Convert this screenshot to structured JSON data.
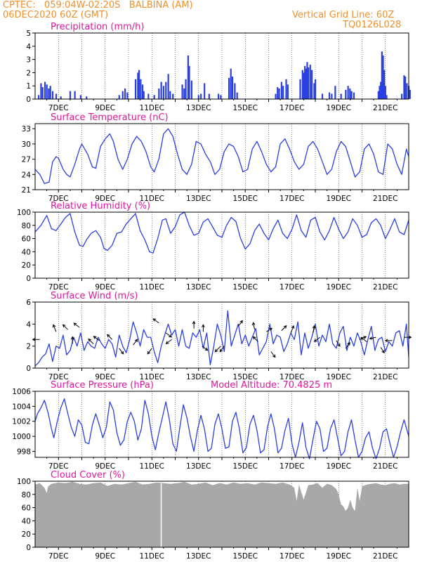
{
  "header": {
    "line1_left": "CPTEC:   059:04W-02:20S   BALBINA (AM)",
    "line2_left": "06DEC2020 60Z (GMT)",
    "line2_right": "Vertical Grid Line: 60Z",
    "line3_right": "TQ0126L028"
  },
  "colors": {
    "header": "#f0902a",
    "title": "#e0189a",
    "series": "#2a40e0",
    "cloud": "#a8a8a8"
  },
  "date_labels": [
    "7DEC",
    "9DEC",
    "11DEC",
    "13DEC",
    "15DEC",
    "17DEC",
    "19DEC",
    "21DEC"
  ],
  "chart_data": [
    {
      "type": "bar",
      "title": "Precipitation (mm/h)",
      "ylim": [
        0,
        5
      ],
      "yticks": [
        "0",
        "1",
        "2",
        "3",
        "4",
        "5"
      ],
      "bars": [
        [
          6.15,
          0.3
        ],
        [
          6.25,
          1.2
        ],
        [
          6.32,
          0.9
        ],
        [
          6.42,
          1.3
        ],
        [
          6.5,
          1.1
        ],
        [
          6.58,
          0.8
        ],
        [
          6.65,
          1.0
        ],
        [
          6.75,
          0.6
        ],
        [
          6.9,
          0.4
        ],
        [
          7.1,
          0.2
        ],
        [
          7.5,
          0.6
        ],
        [
          7.7,
          0.6
        ],
        [
          7.95,
          0.3
        ],
        [
          8.2,
          0.2
        ],
        [
          9.6,
          0.3
        ],
        [
          9.75,
          0.6
        ],
        [
          9.85,
          0.8
        ],
        [
          9.95,
          0.5
        ],
        [
          10.3,
          1.5
        ],
        [
          10.4,
          2.0
        ],
        [
          10.45,
          2.2
        ],
        [
          10.52,
          1.5
        ],
        [
          10.6,
          1.1
        ],
        [
          10.65,
          0.6
        ],
        [
          10.85,
          0.4
        ],
        [
          11.1,
          0.3
        ],
        [
          11.3,
          0.8
        ],
        [
          11.4,
          1.3
        ],
        [
          11.5,
          1.0
        ],
        [
          11.6,
          1.3
        ],
        [
          11.7,
          1.9
        ],
        [
          11.78,
          0.6
        ],
        [
          11.9,
          0.4
        ],
        [
          12.3,
          1.1
        ],
        [
          12.38,
          0.8
        ],
        [
          12.45,
          1.5
        ],
        [
          12.55,
          3.3
        ],
        [
          12.6,
          2.5
        ],
        [
          12.7,
          1.4
        ],
        [
          13.0,
          0.3
        ],
        [
          13.1,
          0.4
        ],
        [
          13.25,
          1.2
        ],
        [
          13.45,
          0.4
        ],
        [
          13.85,
          0.4
        ],
        [
          13.95,
          0.3
        ],
        [
          14.3,
          1.6
        ],
        [
          14.38,
          2.3
        ],
        [
          14.45,
          1.7
        ],
        [
          14.55,
          1.2
        ],
        [
          14.65,
          0.5
        ],
        [
          16.3,
          0.4
        ],
        [
          16.38,
          0.9
        ],
        [
          16.45,
          0.8
        ],
        [
          16.55,
          1.3
        ],
        [
          16.62,
          1.0
        ],
        [
          16.75,
          1.5
        ],
        [
          16.82,
          1.1
        ],
        [
          17.35,
          1.5
        ],
        [
          17.45,
          2.2
        ],
        [
          17.5,
          2.0
        ],
        [
          17.55,
          2.5
        ],
        [
          17.6,
          2.3
        ],
        [
          17.65,
          2.8
        ],
        [
          17.7,
          2.4
        ],
        [
          17.78,
          2.6
        ],
        [
          17.85,
          2.2
        ],
        [
          17.95,
          1.2
        ],
        [
          18.0,
          1.5
        ],
        [
          18.3,
          0.4
        ],
        [
          18.6,
          0.5
        ],
        [
          18.7,
          0.4
        ],
        [
          18.85,
          1.0
        ],
        [
          19.1,
          0.4
        ],
        [
          19.3,
          0.7
        ],
        [
          19.4,
          1.0
        ],
        [
          19.48,
          0.8
        ],
        [
          19.55,
          0.6
        ],
        [
          19.65,
          0.5
        ],
        [
          20.7,
          0.6
        ],
        [
          20.75,
          1.0
        ],
        [
          20.8,
          1.3
        ],
        [
          20.85,
          3.6
        ],
        [
          20.9,
          3.3
        ],
        [
          20.95,
          2.2
        ],
        [
          21.0,
          1.0
        ],
        [
          21.05,
          0.3
        ],
        [
          21.7,
          0.4
        ],
        [
          21.8,
          1.8
        ],
        [
          21.85,
          1.7
        ],
        [
          21.92,
          1.2
        ],
        [
          22.0,
          1.0
        ],
        [
          22.05,
          0.7
        ]
      ]
    },
    {
      "type": "line",
      "title": "Surface Temperature (nC)",
      "ylim": [
        21,
        34
      ],
      "yticks": [
        "21",
        "24",
        "27",
        "30",
        "33"
      ],
      "x": [
        6.0,
        6.2,
        6.4,
        6.6,
        6.75,
        6.9,
        7.0,
        7.2,
        7.35,
        7.5,
        7.7,
        7.9,
        8.0,
        8.25,
        8.45,
        8.6,
        8.8,
        9.0,
        9.2,
        9.35,
        9.55,
        9.75,
        9.95,
        10.15,
        10.35,
        10.55,
        10.75,
        10.95,
        11.1,
        11.3,
        11.5,
        11.7,
        11.9,
        12.1,
        12.3,
        12.5,
        12.7,
        12.9,
        13.1,
        13.3,
        13.5,
        13.7,
        13.9,
        14.1,
        14.3,
        14.5,
        14.7,
        14.9,
        15.1,
        15.3,
        15.5,
        15.7,
        15.9,
        16.1,
        16.3,
        16.5,
        16.7,
        16.9,
        17.1,
        17.3,
        17.5,
        17.7,
        17.9,
        18.1,
        18.3,
        18.5,
        18.7,
        18.9,
        19.1,
        19.3,
        19.5,
        19.7,
        19.9,
        20.1,
        20.3,
        20.5,
        20.7,
        20.9,
        21.1,
        21.3,
        21.5,
        21.7,
        21.9,
        22.0
      ],
      "y": [
        25.0,
        24.0,
        22.2,
        22.5,
        26.5,
        27.5,
        27.2,
        25.0,
        24.0,
        23.5,
        26.0,
        29.0,
        30.0,
        28.0,
        25.5,
        25.2,
        29.5,
        31.0,
        32.0,
        30.5,
        27.0,
        25.0,
        27.0,
        30.0,
        31.5,
        30.5,
        28.5,
        25.5,
        24.5,
        27.0,
        32.0,
        33.0,
        31.5,
        28.0,
        25.0,
        24.0,
        26.0,
        30.5,
        30.0,
        28.0,
        26.5,
        24.0,
        25.0,
        28.5,
        30.0,
        29.5,
        27.5,
        24.5,
        25.0,
        29.0,
        30.5,
        28.5,
        26.0,
        24.5,
        25.5,
        30.0,
        31.0,
        29.0,
        26.5,
        25.0,
        26.0,
        29.5,
        30.5,
        29.0,
        26.5,
        24.0,
        25.0,
        28.5,
        30.5,
        29.5,
        26.5,
        23.5,
        24.5,
        29.0,
        30.0,
        28.0,
        24.5,
        24.0,
        30.0,
        29.0,
        26.0,
        24.0,
        29.0,
        27.5
      ]
    },
    {
      "type": "line",
      "title": "Relative Humidity (%)",
      "ylim": [
        0,
        100
      ],
      "yticks": [
        "0",
        "20",
        "40",
        "60",
        "80",
        "100"
      ],
      "x": [
        6.0,
        6.25,
        6.5,
        6.7,
        6.9,
        7.1,
        7.3,
        7.5,
        7.7,
        7.9,
        8.05,
        8.2,
        8.4,
        8.6,
        8.8,
        8.95,
        9.1,
        9.3,
        9.5,
        9.7,
        9.9,
        10.1,
        10.3,
        10.5,
        10.7,
        10.9,
        11.05,
        11.25,
        11.45,
        11.6,
        11.8,
        12.0,
        12.2,
        12.4,
        12.6,
        12.8,
        13.0,
        13.2,
        13.4,
        13.6,
        13.8,
        14.0,
        14.2,
        14.4,
        14.6,
        14.8,
        15.0,
        15.2,
        15.4,
        15.6,
        15.8,
        16.0,
        16.2,
        16.4,
        16.6,
        16.8,
        17.0,
        17.2,
        17.4,
        17.6,
        17.8,
        18.0,
        18.2,
        18.4,
        18.6,
        18.8,
        19.0,
        19.2,
        19.4,
        19.6,
        19.8,
        20.0,
        20.2,
        20.4,
        20.6,
        20.8,
        21.0,
        21.2,
        21.4,
        21.6,
        21.8,
        22.0
      ],
      "y": [
        70,
        80,
        95,
        75,
        72,
        82,
        92,
        98,
        70,
        50,
        48,
        58,
        68,
        72,
        62,
        45,
        42,
        50,
        68,
        70,
        82,
        90,
        98,
        72,
        58,
        40,
        38,
        60,
        88,
        90,
        68,
        78,
        96,
        100,
        80,
        65,
        68,
        85,
        90,
        78,
        65,
        62,
        80,
        92,
        86,
        60,
        44,
        52,
        72,
        82,
        68,
        58,
        75,
        88,
        68,
        60,
        74,
        96,
        72,
        62,
        88,
        92,
        70,
        58,
        72,
        92,
        74,
        60,
        70,
        90,
        80,
        62,
        66,
        84,
        90,
        80,
        60,
        74,
        90,
        70,
        66,
        88
      ]
    },
    {
      "type": "line",
      "title": "Surface Wind (m/s)",
      "ylim": [
        0,
        6
      ],
      "yticks": [
        "0",
        "2",
        "4",
        "6"
      ],
      "x": [
        6.0,
        6.15,
        6.3,
        6.45,
        6.6,
        6.75,
        6.9,
        7.05,
        7.2,
        7.35,
        7.5,
        7.65,
        7.8,
        7.95,
        8.1,
        8.25,
        8.4,
        8.55,
        8.7,
        8.85,
        9.0,
        9.15,
        9.3,
        9.45,
        9.6,
        9.75,
        9.9,
        10.05,
        10.2,
        10.35,
        10.5,
        10.65,
        10.8,
        10.95,
        11.1,
        11.25,
        11.4,
        11.55,
        11.7,
        11.85,
        12.0,
        12.15,
        12.3,
        12.45,
        12.6,
        12.75,
        12.9,
        13.05,
        13.2,
        13.35,
        13.5,
        13.65,
        13.8,
        13.95,
        14.1,
        14.25,
        14.4,
        14.55,
        14.7,
        14.85,
        15.0,
        15.15,
        15.3,
        15.45,
        15.6,
        15.75,
        15.9,
        16.05,
        16.2,
        16.35,
        16.5,
        16.65,
        16.8,
        16.95,
        17.1,
        17.25,
        17.4,
        17.55,
        17.7,
        17.85,
        18.0,
        18.15,
        18.3,
        18.45,
        18.6,
        18.75,
        18.9,
        19.05,
        19.2,
        19.35,
        19.5,
        19.65,
        19.8,
        19.95,
        20.1,
        20.25,
        20.4,
        20.55,
        20.7,
        20.85,
        21.0,
        21.15,
        21.3,
        21.45,
        21.6,
        21.75,
        21.9,
        22.0
      ],
      "y": [
        0.2,
        0.5,
        1.0,
        1.3,
        2.2,
        0.6,
        2.0,
        1.8,
        3.0,
        1.2,
        1.6,
        2.8,
        2.0,
        3.2,
        1.6,
        2.4,
        2.0,
        1.8,
        2.8,
        2.2,
        1.8,
        2.6,
        2.2,
        1.0,
        3.0,
        2.0,
        1.4,
        2.6,
        4.2,
        3.2,
        2.0,
        3.5,
        2.8,
        2.8,
        1.5,
        0.5,
        2.0,
        3.0,
        4.0,
        3.0,
        3.5,
        2.0,
        3.5,
        2.0,
        1.8,
        3.2,
        2.8,
        3.5,
        1.8,
        3.2,
        0.3,
        2.0,
        4.0,
        3.0,
        1.5,
        5.2,
        2.0,
        3.0,
        4.0,
        2.2,
        3.0,
        2.0,
        2.8,
        3.6,
        1.2,
        1.8,
        2.4,
        4.0,
        2.2,
        3.0,
        2.8,
        1.5,
        2.2,
        3.2,
        2.6,
        4.2,
        1.2,
        3.2,
        1.8,
        2.8,
        4.0,
        2.0,
        3.0,
        2.4,
        4.0,
        2.2,
        1.8,
        3.2,
        3.8,
        1.6,
        2.8,
        2.0,
        3.2,
        2.4,
        1.2,
        2.6,
        3.8,
        1.6,
        2.6,
        2.8,
        1.5,
        2.4,
        2.0,
        3.2,
        3.4,
        2.0,
        4.0,
        1.0
      ]
    },
    {
      "type": "line",
      "title": "Surface Pressure (hPa)",
      "annotation": "Model Altitude: 70.4825 m",
      "ylim": [
        997.2,
        1006
      ],
      "yticks": [
        "998",
        "1000",
        "1002",
        "1004",
        "1006"
      ],
      "x": [
        6.0,
        6.1,
        6.25,
        6.4,
        6.55,
        6.7,
        6.8,
        6.95,
        7.1,
        7.25,
        7.4,
        7.55,
        7.7,
        7.85,
        8.0,
        8.15,
        8.3,
        8.45,
        8.6,
        8.75,
        8.9,
        9.05,
        9.2,
        9.35,
        9.5,
        9.65,
        9.8,
        9.95,
        10.1,
        10.25,
        10.4,
        10.55,
        10.7,
        10.85,
        11.0,
        11.15,
        11.3,
        11.45,
        11.6,
        11.75,
        11.9,
        12.05,
        12.2,
        12.35,
        12.5,
        12.65,
        12.8,
        12.95,
        13.1,
        13.25,
        13.4,
        13.55,
        13.7,
        13.85,
        14.0,
        14.15,
        14.3,
        14.45,
        14.6,
        14.75,
        14.9,
        15.05,
        15.2,
        15.35,
        15.5,
        15.65,
        15.8,
        15.95,
        16.1,
        16.25,
        16.4,
        16.55,
        16.7,
        16.85,
        17.0,
        17.15,
        17.3,
        17.45,
        17.6,
        17.75,
        17.9,
        18.05,
        18.2,
        18.35,
        18.5,
        18.65,
        18.8,
        18.95,
        19.1,
        19.25,
        19.4,
        19.55,
        19.7,
        19.85,
        20.0,
        20.15,
        20.3,
        20.45,
        20.6,
        20.75,
        20.9,
        21.05,
        21.2,
        21.35,
        21.5,
        21.65,
        21.8,
        22.0
      ],
      "y": [
        1002.0,
        1003.0,
        1003.8,
        1004.8,
        1003.2,
        1001.0,
        999.8,
        1002.0,
        1003.8,
        1005.0,
        1003.0,
        1001.2,
        1000.0,
        1002.2,
        1001.5,
        999.2,
        999.0,
        1001.5,
        1003.0,
        1001.5,
        999.8,
        1001.2,
        1004.6,
        1003.5,
        1000.5,
        998.8,
        999.5,
        1002.0,
        1003.2,
        1002.0,
        999.5,
        1001.0,
        1004.8,
        1003.0,
        1000.0,
        998.2,
        1000.5,
        1002.5,
        1004.6,
        1002.2,
        999.0,
        998.0,
        1001.2,
        1004.2,
        1002.5,
        1000.0,
        998.0,
        1000.8,
        1002.8,
        1001.0,
        998.0,
        998.4,
        1001.6,
        1003.0,
        1001.0,
        998.4,
        998.6,
        1002.0,
        1003.2,
        1001.0,
        997.8,
        998.5,
        1001.6,
        1002.8,
        1000.8,
        997.8,
        998.2,
        1001.2,
        1003.0,
        1001.0,
        997.8,
        998.4,
        1000.8,
        1002.4,
        999.0,
        997.2,
        999.2,
        1001.8,
        998.5,
        997.0,
        999.6,
        1002.0,
        1001.0,
        998.0,
        998.4,
        1001.0,
        1002.2,
        999.8,
        997.4,
        998.0,
        1000.6,
        1002.2,
        999.5,
        997.2,
        998.0,
        999.8,
        1000.6,
        998.4,
        997.0,
        998.4,
        1000.6,
        1001.0,
        999.0,
        997.2,
        998.6,
        1000.6,
        1002.2,
        1000.0
      ]
    },
    {
      "type": "area",
      "title": "Cloud Cover (%)",
      "ylim": [
        0,
        100
      ],
      "yticks": [
        "0",
        "20",
        "40",
        "60",
        "80",
        "100"
      ],
      "x": [
        6.0,
        6.2,
        6.4,
        6.5,
        6.55,
        6.7,
        7.0,
        7.3,
        7.6,
        7.9,
        8.2,
        8.5,
        8.8,
        9.1,
        9.4,
        9.7,
        10.0,
        10.3,
        10.6,
        10.9,
        11.2,
        11.5,
        11.8,
        12.1,
        12.4,
        12.7,
        13.0,
        13.3,
        13.6,
        13.9,
        14.2,
        14.5,
        14.8,
        15.1,
        15.4,
        15.7,
        16.0,
        16.3,
        16.6,
        16.9,
        17.1,
        17.2,
        17.3,
        17.5,
        17.7,
        17.9,
        18.1,
        18.3,
        18.5,
        18.7,
        18.9,
        19.0,
        19.1,
        19.2,
        19.3,
        19.4,
        19.5,
        19.6,
        19.7,
        19.8,
        19.9,
        20.0,
        20.2,
        20.4,
        20.6,
        20.8,
        21.0,
        21.2,
        21.4,
        21.6,
        21.8,
        22.0
      ],
      "y": [
        95,
        97,
        90,
        82,
        92,
        96,
        98,
        97,
        99,
        96,
        95,
        97,
        98,
        93,
        96,
        95,
        97,
        99,
        95,
        96,
        98,
        97,
        96,
        97,
        99,
        95,
        96,
        98,
        94,
        97,
        95,
        98,
        96,
        97,
        95,
        98,
        97,
        96,
        98,
        95,
        90,
        70,
        95,
        72,
        94,
        95,
        97,
        90,
        96,
        94,
        88,
        80,
        65,
        62,
        55,
        60,
        72,
        60,
        55,
        90,
        70,
        92,
        95,
        96,
        97,
        95,
        94,
        96,
        97,
        95,
        96,
        96
      ]
    }
  ]
}
